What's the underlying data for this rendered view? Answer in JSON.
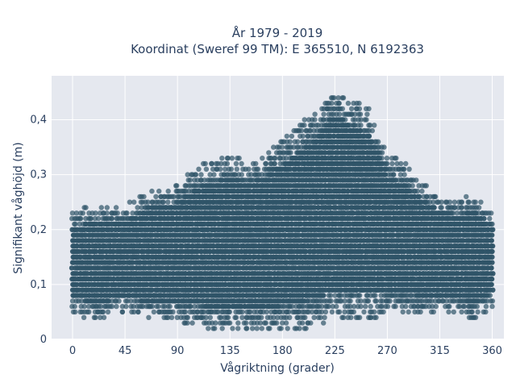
{
  "chart_data": {
    "type": "scatter",
    "title_line1": "År 1979 - 2019",
    "title_line2": "Koordinat (Sweref 99 TM): E 365510, N 6192363",
    "xlabel": "Vågriktning (grader)",
    "ylabel": "Signifikant våghöjd (m)",
    "xlim": [
      -18,
      370
    ],
    "ylim": [
      0,
      0.48
    ],
    "x_ticks": [
      0,
      45,
      90,
      135,
      180,
      225,
      270,
      315,
      360
    ],
    "x_tick_labels": [
      "0",
      "45",
      "90",
      "135",
      "180",
      "225",
      "270",
      "315",
      "360"
    ],
    "y_ticks": [
      0,
      0.1,
      0.2,
      0.3,
      0.4
    ],
    "y_tick_labels": [
      "0",
      "0,1",
      "0,2",
      "0,3",
      "0,4"
    ],
    "grid": true,
    "legend": "none",
    "marker_color": "#2f5468",
    "plot_bg": "#e5e8ef",
    "density_envelope": [
      {
        "x": 0,
        "low": 0.05,
        "high": 0.23
      },
      {
        "x": 20,
        "low": 0.04,
        "high": 0.24
      },
      {
        "x": 45,
        "low": 0.05,
        "high": 0.24
      },
      {
        "x": 70,
        "low": 0.04,
        "high": 0.27
      },
      {
        "x": 90,
        "low": 0.03,
        "high": 0.28
      },
      {
        "x": 105,
        "low": 0.03,
        "high": 0.31
      },
      {
        "x": 120,
        "low": 0.02,
        "high": 0.32
      },
      {
        "x": 135,
        "low": 0.02,
        "high": 0.33
      },
      {
        "x": 150,
        "low": 0.02,
        "high": 0.32
      },
      {
        "x": 165,
        "low": 0.02,
        "high": 0.33
      },
      {
        "x": 180,
        "low": 0.02,
        "high": 0.36
      },
      {
        "x": 195,
        "low": 0.02,
        "high": 0.39
      },
      {
        "x": 210,
        "low": 0.03,
        "high": 0.41
      },
      {
        "x": 225,
        "low": 0.04,
        "high": 0.46
      },
      {
        "x": 240,
        "low": 0.04,
        "high": 0.43
      },
      {
        "x": 255,
        "low": 0.04,
        "high": 0.42
      },
      {
        "x": 270,
        "low": 0.05,
        "high": 0.33
      },
      {
        "x": 285,
        "low": 0.05,
        "high": 0.32
      },
      {
        "x": 300,
        "low": 0.05,
        "high": 0.28
      },
      {
        "x": 315,
        "low": 0.05,
        "high": 0.26
      },
      {
        "x": 330,
        "low": 0.05,
        "high": 0.25
      },
      {
        "x": 345,
        "low": 0.04,
        "high": 0.26
      },
      {
        "x": 360,
        "low": 0.06,
        "high": 0.23
      }
    ]
  }
}
